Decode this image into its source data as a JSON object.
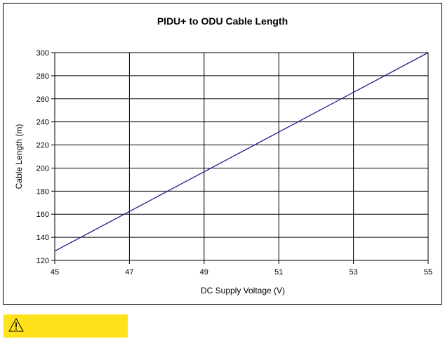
{
  "chart_data": {
    "type": "line",
    "title": "PIDU+ to ODU Cable Length",
    "xlabel": "DC Supply Voltage (V)",
    "ylabel": "Cable Length (m)",
    "xlim": [
      45,
      55
    ],
    "ylim": [
      120,
      300
    ],
    "x_ticks": [
      45,
      47,
      49,
      51,
      53,
      55
    ],
    "y_ticks": [
      120,
      140,
      160,
      180,
      200,
      220,
      240,
      260,
      280,
      300
    ],
    "grid": true,
    "line_color": "#1f1f8f",
    "series": [
      {
        "x": [
          45,
          55
        ],
        "values": [
          128,
          300
        ]
      }
    ]
  },
  "warning": {
    "icon": "warning-triangle-icon",
    "color": "#ffe21a"
  }
}
